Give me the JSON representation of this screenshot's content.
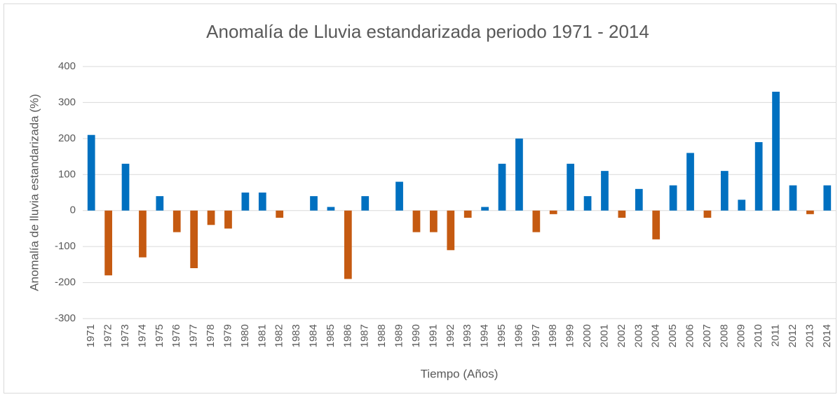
{
  "chart_data": {
    "type": "bar",
    "title": "Anomalía de Lluvia estandarizada periodo 1971 - 2014",
    "x_label": "Tiempo (Años)",
    "y_label": "Anomalía de lluvia estandarizada (%)",
    "categories": [
      "1971",
      "1972",
      "1973",
      "1974",
      "1975",
      "1976",
      "1977",
      "1978",
      "1979",
      "1980",
      "1981",
      "1982",
      "1983",
      "1984",
      "1985",
      "1986",
      "1987",
      "1988",
      "1989",
      "1990",
      "1991",
      "1992",
      "1993",
      "1994",
      "1995",
      "1996",
      "1997",
      "1998",
      "1999",
      "2000",
      "2001",
      "2002",
      "2003",
      "2004",
      "2005",
      "2006",
      "2007",
      "2008",
      "2009",
      "2010",
      "2011",
      "2012",
      "2013",
      "2014"
    ],
    "values": [
      210,
      -180,
      130,
      -130,
      40,
      -60,
      -160,
      -40,
      -50,
      50,
      50,
      -20,
      0,
      40,
      10,
      -190,
      40,
      0,
      80,
      -60,
      -60,
      -110,
      -20,
      10,
      130,
      200,
      -60,
      -10,
      130,
      40,
      110,
      -20,
      60,
      -80,
      70,
      160,
      -20,
      110,
      30,
      190,
      330,
      70,
      -10,
      70
    ],
    "color": "#0070c0",
    "negative_color": "#c55a11",
    "ylim": [
      -300,
      400
    ],
    "yticks": [
      -300,
      -200,
      -100,
      0,
      100,
      200,
      300,
      400
    ],
    "grid": true
  }
}
